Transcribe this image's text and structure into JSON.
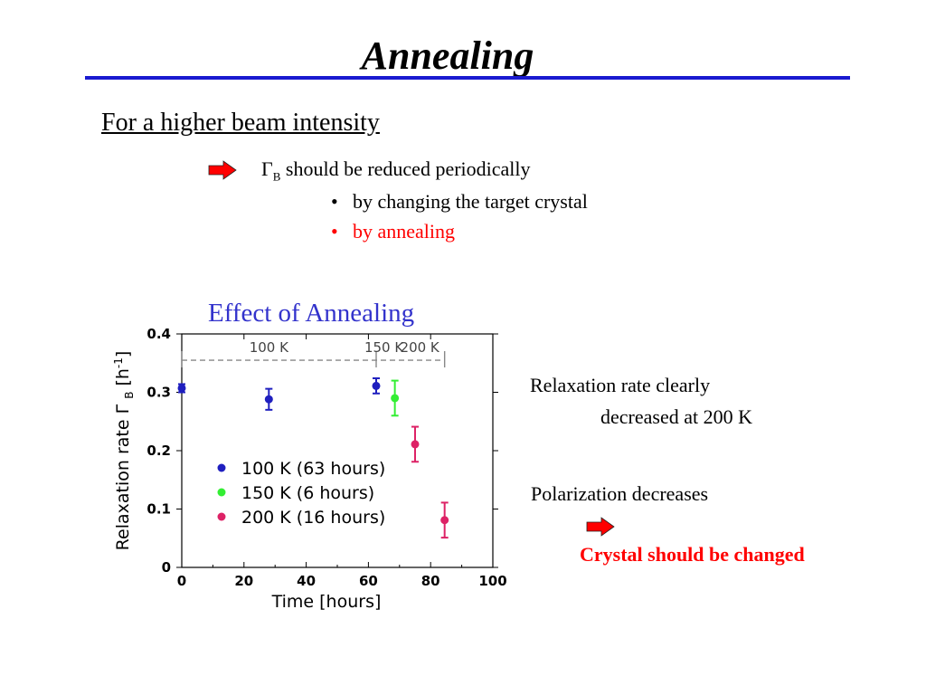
{
  "slide": {
    "title": "Annealing",
    "subtitle": "For a higher beam intensity",
    "gamma_symbol": "Γ",
    "gamma_subscript": "B",
    "line1_text": "should be reduced periodically",
    "bullets": [
      "by changing the target crystal",
      "by annealing"
    ],
    "bullet_colors": [
      "#000000",
      "#ff0000"
    ],
    "chart_title": "Effect of Annealing",
    "note1_line1": "Relaxation rate clearly",
    "note1_line2": "decreased at 200 K",
    "note2": "Polarization decreases",
    "note3": "Crystal should be changed",
    "arrow_color": "#ff0000",
    "rule_color": "#1a1ad0",
    "icons": [
      "right-arrow-icon",
      "bullet-dot-icon"
    ]
  },
  "chart_data": {
    "type": "scatter",
    "xlabel": "Time [hours]",
    "ylabel_parts": [
      "Relaxation rate Γ",
      "B",
      "[h",
      "-1",
      "]"
    ],
    "xlim": [
      0,
      100
    ],
    "ylim": [
      0,
      0.4
    ],
    "xticks": [
      "0",
      "20",
      "40",
      "60",
      "80",
      "100"
    ],
    "yticks": [
      "0",
      "0.1",
      "0.2",
      "0.3",
      "0.4"
    ],
    "grid": false,
    "legend_position": "bottom-left",
    "series": [
      {
        "name": "100 K (63 hours)",
        "color": "#1f1fbf",
        "points": [
          {
            "x": 0,
            "y": 0.307,
            "err": 0.007
          },
          {
            "x": 28,
            "y": 0.288,
            "err": 0.018
          },
          {
            "x": 62.5,
            "y": 0.311,
            "err": 0.013
          }
        ]
      },
      {
        "name": "150 K (6 hours)",
        "color": "#33ee33",
        "points": [
          {
            "x": 68.5,
            "y": 0.29,
            "err": 0.03
          }
        ]
      },
      {
        "name": "200 K (16 hours)",
        "color": "#dd2266",
        "points": [
          {
            "x": 75,
            "y": 0.211,
            "err": 0.03
          },
          {
            "x": 84.5,
            "y": 0.081,
            "err": 0.03
          }
        ]
      }
    ],
    "annotations": {
      "dashed_line_y": 0.355,
      "markers_x": [
        0,
        62.5,
        84.5
      ],
      "labels": [
        "100 K",
        "150 K",
        "200 K"
      ]
    }
  }
}
